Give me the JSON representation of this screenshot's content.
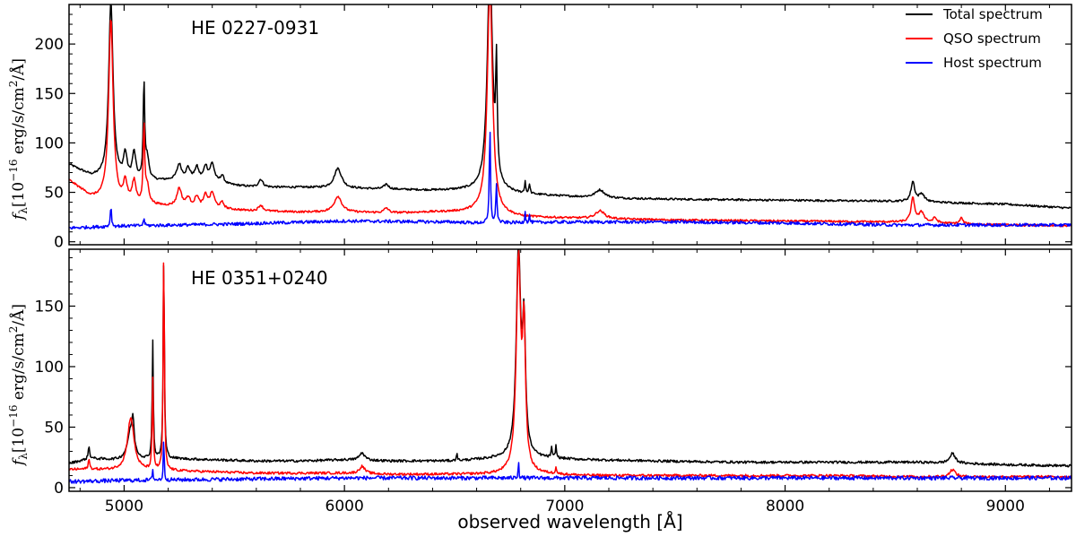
{
  "chart_data": [
    {
      "type": "line",
      "title": "HE 0227-0931",
      "xlabel": "observed wavelength [Å]",
      "ylabel": "f_λ [10^-16 erg/s/cm^2/Å]",
      "ylabel_parts": {
        "f": "f",
        "lambda": "λ",
        "unit_open": "[10",
        "exp": "−16",
        "unit_mid": " erg/s/cm",
        "exp2": "2",
        "unit_close": "/Å]"
      },
      "xlim": [
        4750,
        9300
      ],
      "ylim": [
        -3,
        240
      ],
      "yticks": [
        0,
        50,
        100,
        150,
        200
      ],
      "legend": [
        "Total spectrum",
        "QSO spectrum",
        "Host spectrum"
      ],
      "series": [
        {
          "name": "Total spectrum",
          "color": "#000000",
          "continuum": [
            [
              4750,
              78
            ],
            [
              4850,
              66
            ],
            [
              4950,
              62
            ],
            [
              5050,
              60
            ],
            [
              5200,
              62
            ],
            [
              5300,
              64
            ],
            [
              5450,
              58
            ],
            [
              5600,
              55
            ],
            [
              5800,
              55
            ],
            [
              6000,
              54
            ],
            [
              6200,
              53
            ],
            [
              6400,
              52
            ],
            [
              6600,
              52
            ],
            [
              6800,
              48
            ],
            [
              7000,
              46
            ],
            [
              7200,
              44
            ],
            [
              7500,
              43
            ],
            [
              8000,
              42
            ],
            [
              8500,
              41
            ],
            [
              9000,
              38
            ],
            [
              9300,
              34
            ]
          ],
          "lines": [
            [
              4940,
              180,
              12
            ],
            [
              5005,
              25,
              10
            ],
            [
              5045,
              28,
              10
            ],
            [
              5090,
              100,
              4
            ],
            [
              5105,
              22,
              10
            ],
            [
              5250,
              15,
              12
            ],
            [
              5290,
              10,
              10
            ],
            [
              5330,
              12,
              10
            ],
            [
              5370,
              14,
              10
            ],
            [
              5400,
              18,
              12
            ],
            [
              5445,
              8,
              10
            ],
            [
              5620,
              8,
              12
            ],
            [
              5970,
              20,
              20
            ],
            [
              6190,
              5,
              12
            ],
            [
              6660,
              230,
              14
            ],
            [
              6690,
              110,
              4
            ],
            [
              6820,
              12,
              3
            ],
            [
              6840,
              10,
              3
            ],
            [
              7160,
              8,
              25
            ],
            [
              8580,
              20,
              10
            ],
            [
              8620,
              8,
              15
            ]
          ]
        },
        {
          "name": "QSO spectrum",
          "color": "#ff0000",
          "continuum": [
            [
              4750,
              62
            ],
            [
              4850,
              45
            ],
            [
              4950,
              40
            ],
            [
              5050,
              38
            ],
            [
              5200,
              36
            ],
            [
              5300,
              36
            ],
            [
              5450,
              33
            ],
            [
              5600,
              31
            ],
            [
              5800,
              30
            ],
            [
              6000,
              30
            ],
            [
              6200,
              29
            ],
            [
              6400,
              30
            ],
            [
              6600,
              30
            ],
            [
              6800,
              25
            ],
            [
              7000,
              24
            ],
            [
              7200,
              23
            ],
            [
              7500,
              22
            ],
            [
              8000,
              21
            ],
            [
              8500,
              20
            ],
            [
              9000,
              17
            ],
            [
              9300,
              16
            ]
          ],
          "lines": [
            [
              4940,
              185,
              12
            ],
            [
              5005,
              20,
              10
            ],
            [
              5045,
              22,
              10
            ],
            [
              5090,
              80,
              4
            ],
            [
              5105,
              18,
              10
            ],
            [
              5250,
              18,
              12
            ],
            [
              5290,
              8,
              10
            ],
            [
              5330,
              10,
              10
            ],
            [
              5370,
              12,
              10
            ],
            [
              5400,
              15,
              12
            ],
            [
              5445,
              6,
              10
            ],
            [
              5620,
              6,
              12
            ],
            [
              5970,
              16,
              20
            ],
            [
              6190,
              5,
              12
            ],
            [
              6660,
              230,
              14
            ],
            [
              7160,
              8,
              25
            ],
            [
              8580,
              24,
              10
            ],
            [
              8620,
              10,
              15
            ],
            [
              8680,
              5,
              10
            ],
            [
              8800,
              6,
              8
            ]
          ]
        },
        {
          "name": "Host spectrum",
          "color": "#0000ff",
          "continuum": [
            [
              4750,
              14
            ],
            [
              5000,
              16
            ],
            [
              5500,
              18
            ],
            [
              6000,
              21
            ],
            [
              6500,
              20
            ],
            [
              6600,
              19
            ],
            [
              7000,
              20
            ],
            [
              7500,
              20
            ],
            [
              8000,
              19
            ],
            [
              8500,
              17
            ],
            [
              9000,
              17
            ],
            [
              9300,
              17
            ]
          ],
          "lines": [
            [
              4940,
              22,
              3
            ],
            [
              5090,
              8,
              3
            ],
            [
              6660,
              100,
              3
            ],
            [
              6690,
              40,
              3
            ],
            [
              6820,
              12,
              2
            ],
            [
              6840,
              8,
              2
            ]
          ]
        }
      ]
    },
    {
      "type": "line",
      "title": "HE 0351+0240",
      "xlabel": "observed wavelength [Å]",
      "ylabel": "f_λ [10^-16 erg/s/cm^2/Å]",
      "xlim": [
        4750,
        9300
      ],
      "ylim": [
        -3,
        197
      ],
      "yticks": [
        0,
        50,
        100,
        150
      ],
      "xticks": [
        5000,
        6000,
        7000,
        8000,
        9000
      ],
      "series": [
        {
          "name": "Total spectrum",
          "color": "#000000",
          "continuum": [
            [
              4750,
              20
            ],
            [
              4850,
              24
            ],
            [
              5000,
              22
            ],
            [
              5200,
              24
            ],
            [
              5400,
              23
            ],
            [
              5600,
              22
            ],
            [
              5800,
              22
            ],
            [
              6000,
              23
            ],
            [
              6200,
              22
            ],
            [
              6500,
              22
            ],
            [
              6700,
              24
            ],
            [
              6900,
              24
            ],
            [
              7100,
              23
            ],
            [
              7400,
              22
            ],
            [
              7800,
              21
            ],
            [
              8200,
              21
            ],
            [
              8600,
              21
            ],
            [
              9000,
              19
            ],
            [
              9300,
              18
            ]
          ],
          "lines": [
            [
              4840,
              10,
              4
            ],
            [
              5030,
              25,
              18
            ],
            [
              5040,
              20,
              5
            ],
            [
              5130,
              98,
              3
            ],
            [
              5180,
              176,
              3
            ],
            [
              6080,
              6,
              15
            ],
            [
              6510,
              6,
              3
            ],
            [
              6790,
              170,
              12
            ],
            [
              6815,
              100,
              8
            ],
            [
              6960,
              10,
              3
            ],
            [
              6940,
              8,
              3
            ],
            [
              8760,
              8,
              15
            ]
          ]
        },
        {
          "name": "QSO spectrum",
          "color": "#ff0000",
          "continuum": [
            [
              4750,
              15
            ],
            [
              4850,
              15
            ],
            [
              5000,
              14
            ],
            [
              5200,
              14
            ],
            [
              5400,
              13
            ],
            [
              5600,
              12
            ],
            [
              5800,
              12
            ],
            [
              6000,
              12
            ],
            [
              6200,
              11
            ],
            [
              6500,
              11
            ],
            [
              6700,
              11
            ],
            [
              6900,
              11
            ],
            [
              7100,
              10
            ],
            [
              7400,
              10
            ],
            [
              7800,
              10
            ],
            [
              8200,
              10
            ],
            [
              8600,
              9
            ],
            [
              9000,
              9
            ],
            [
              9300,
              9
            ]
          ],
          "lines": [
            [
              4840,
              8,
              4
            ],
            [
              5030,
              44,
              18
            ],
            [
              5130,
              75,
              3
            ],
            [
              5180,
              190,
              3
            ],
            [
              6080,
              6,
              15
            ],
            [
              6790,
              175,
              12
            ],
            [
              6815,
              110,
              8
            ],
            [
              6960,
              6,
              3
            ],
            [
              8760,
              6,
              15
            ]
          ]
        },
        {
          "name": "Host spectrum",
          "color": "#0000ff",
          "continuum": [
            [
              4750,
              5
            ],
            [
              5000,
              6
            ],
            [
              5500,
              7
            ],
            [
              6000,
              8
            ],
            [
              6500,
              8
            ],
            [
              7000,
              8
            ],
            [
              7500,
              8
            ],
            [
              8000,
              8
            ],
            [
              8500,
              8
            ],
            [
              9000,
              8
            ],
            [
              9300,
              8
            ]
          ],
          "lines": [
            [
              5130,
              10,
              2
            ],
            [
              5180,
              40,
              2
            ],
            [
              6790,
              16,
              2
            ]
          ]
        }
      ]
    }
  ]
}
